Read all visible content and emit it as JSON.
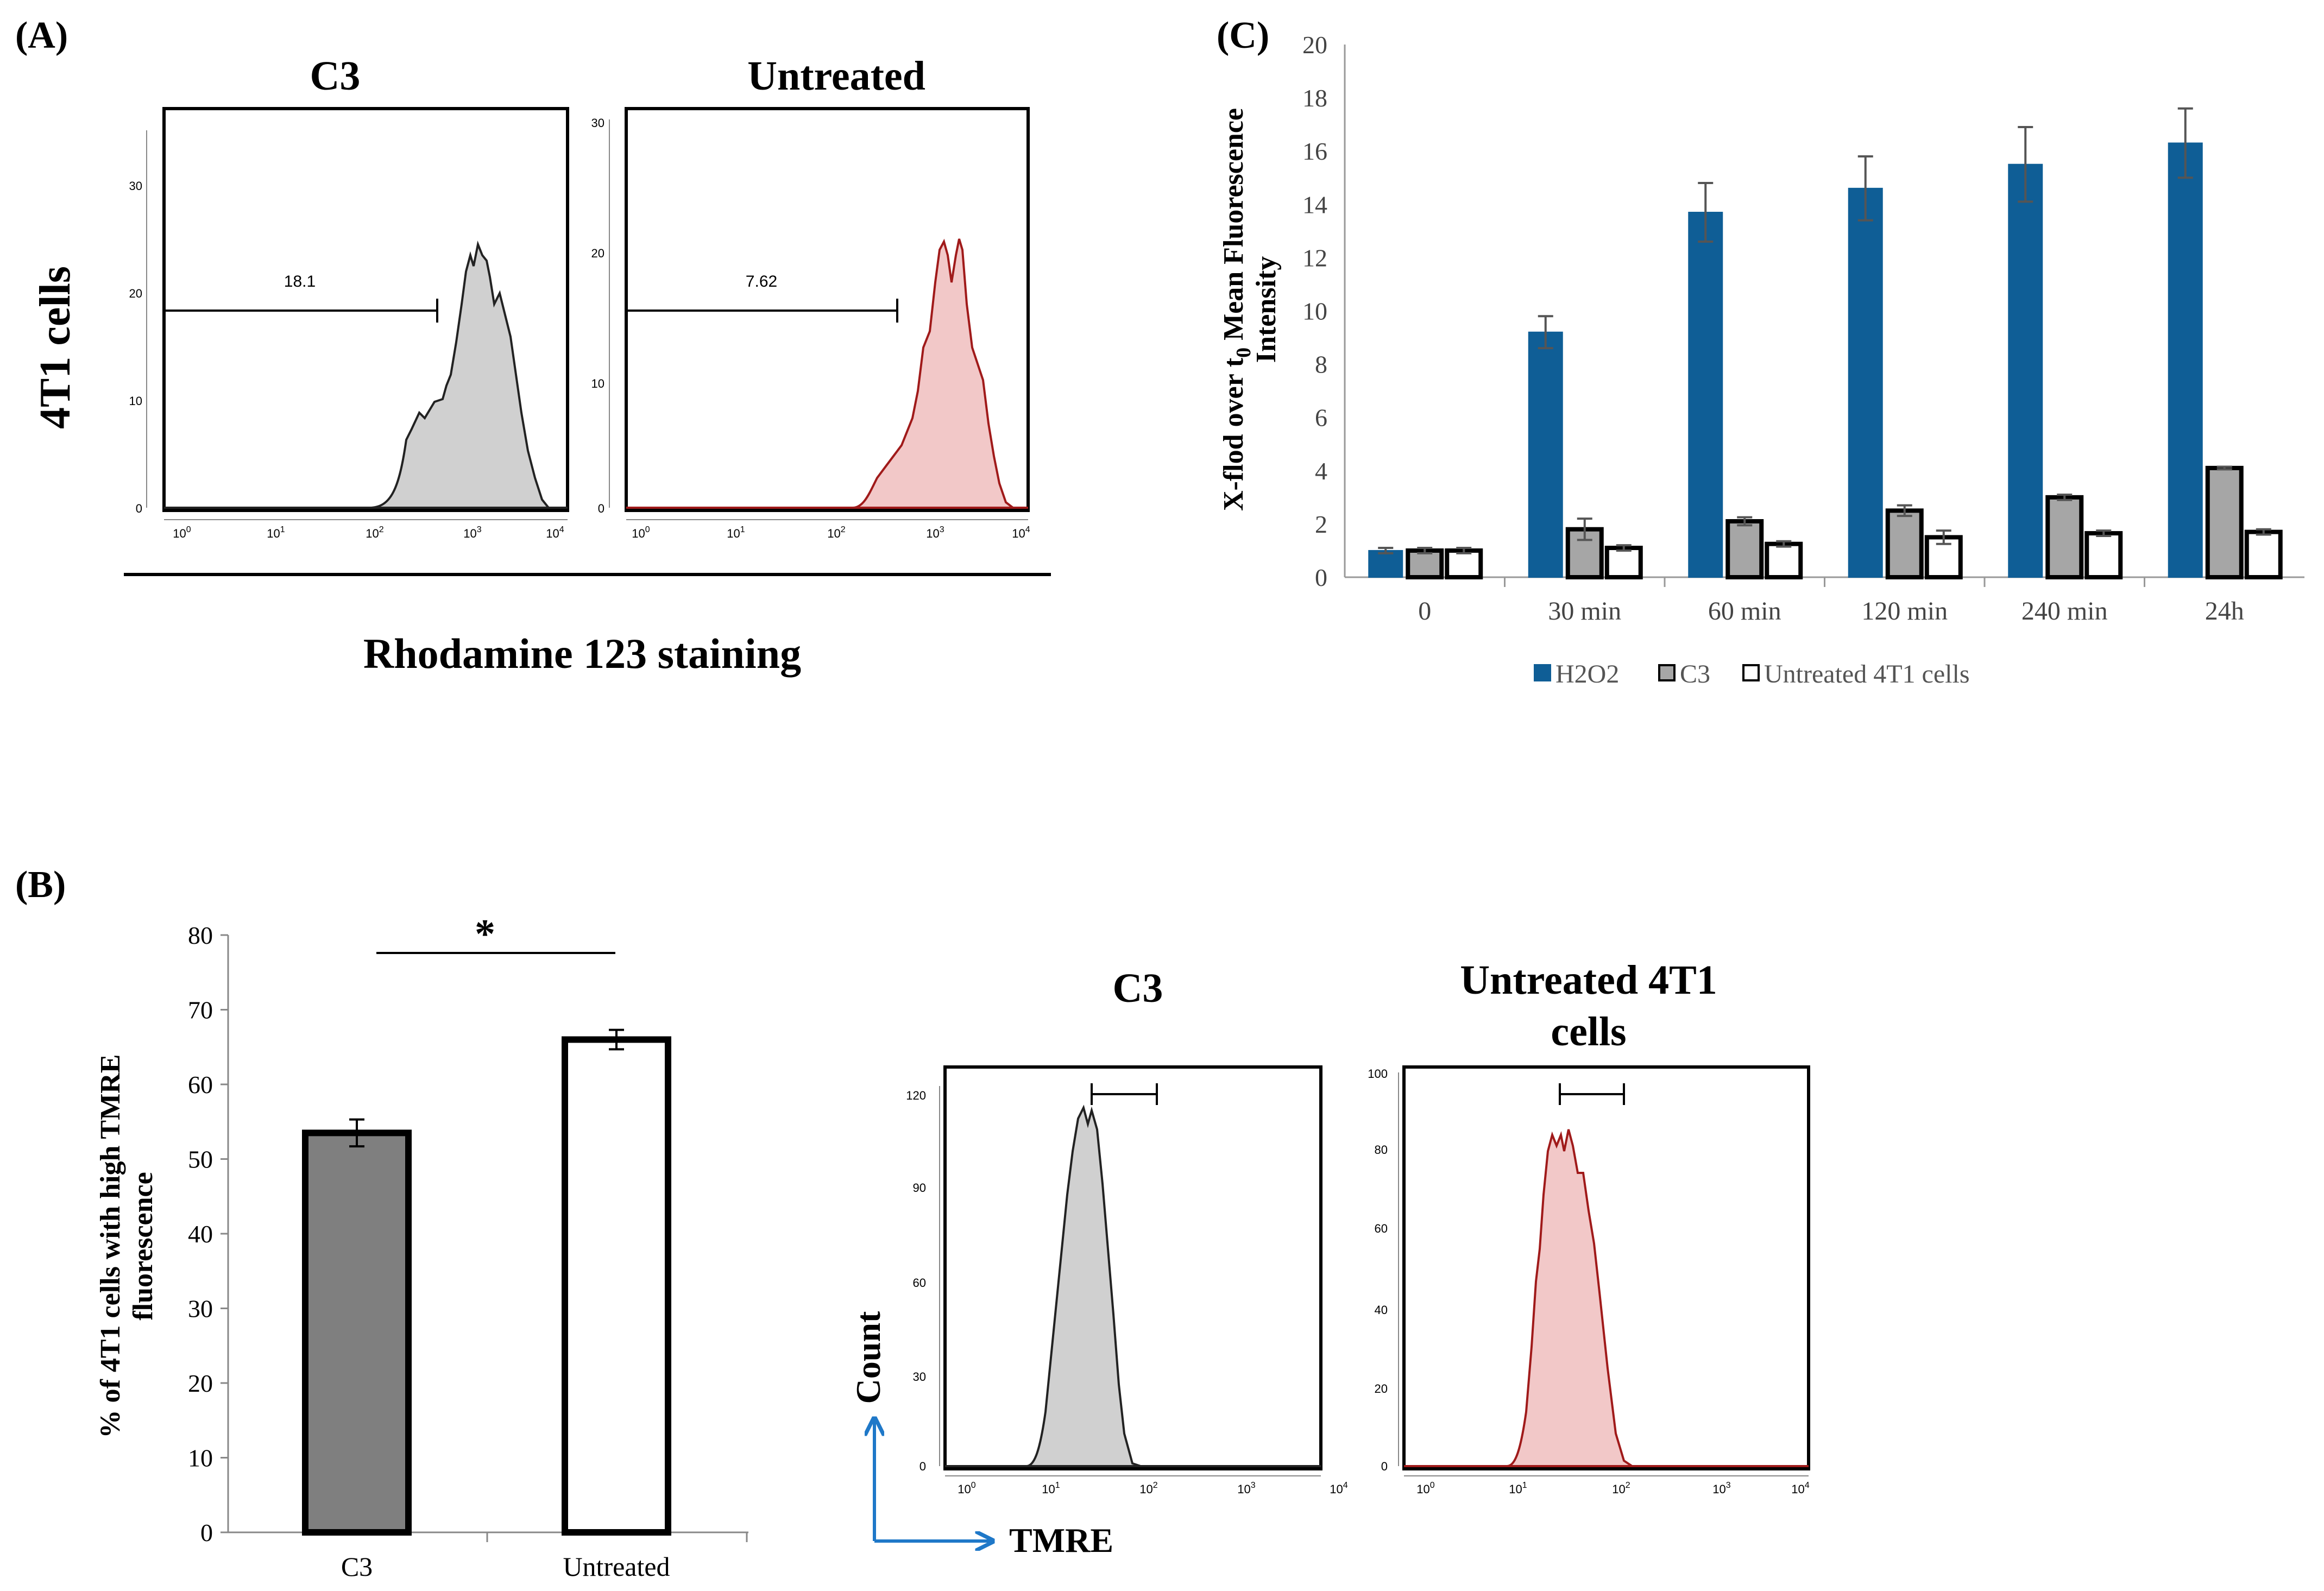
{
  "panels": {
    "a": {
      "letter": "(A)",
      "row_label": "4T1 cells",
      "x_caption": "Rhodamine 123 staining",
      "histograms": [
        {
          "title": "C3",
          "gate_value": "18.1",
          "y_ticks": [
            "0",
            "10",
            "20",
            "30"
          ],
          "x_ticks": [
            "10",
            "10",
            "10",
            "10",
            "10"
          ],
          "x_exponents": [
            "0",
            "1",
            "2",
            "3",
            "4"
          ],
          "color_fill": "#d0d0d0",
          "color_line": "#222222"
        },
        {
          "title": "Untreated",
          "gate_value": "7.62",
          "y_ticks": [
            "0",
            "10",
            "20",
            "30"
          ],
          "x_ticks": [
            "10",
            "10",
            "10",
            "10",
            "10"
          ],
          "x_exponents": [
            "0",
            "1",
            "2",
            "3",
            "4"
          ],
          "color_fill": "#f2c8c8",
          "color_line": "#a01a1a"
        }
      ]
    },
    "b": {
      "letter": "(B)",
      "significance": "*",
      "y_axis_label_line1": "% of 4T1 cells with high TMRE",
      "y_axis_label_line2": "fluorescence",
      "y_ticks": [
        "0",
        "10",
        "20",
        "30",
        "40",
        "50",
        "60",
        "70",
        "80"
      ],
      "histograms": [
        {
          "title_line1": "C3",
          "title_line2": "",
          "y_ticks": [
            "0",
            "30",
            "60",
            "90",
            "120"
          ],
          "x_ticks": [
            "10",
            "10",
            "10",
            "10",
            "10"
          ],
          "x_exponents": [
            "0",
            "1",
            "2",
            "3",
            "4"
          ],
          "color_fill": "#d0d0d0",
          "color_line": "#222222"
        },
        {
          "title_line1": "Untreated 4T1",
          "title_line2": "cells",
          "y_ticks": [
            "0",
            "20",
            "40",
            "60",
            "80",
            "100"
          ],
          "x_ticks": [
            "10",
            "10",
            "10",
            "10",
            "10"
          ],
          "x_exponents": [
            "0",
            "1",
            "2",
            "3",
            "4"
          ],
          "color_fill": "#f2c8c8",
          "color_line": "#a01a1a"
        }
      ],
      "axis_arrow_y_label": "Count",
      "axis_arrow_x_label": "TMRE",
      "arrow_color": "#1f78c8"
    },
    "c": {
      "letter": "(C)",
      "y_axis_label_line1_pre": "X-flod over t",
      "y_axis_label_sub": "0",
      "y_axis_label_line1_post": " Mean Fluorescence",
      "y_axis_label_line2": "Intensity",
      "y_ticks": [
        "0",
        "2",
        "4",
        "6",
        "8",
        "10",
        "12",
        "14",
        "16",
        "18",
        "20"
      ]
    }
  },
  "chart_data": [
    {
      "type": "bar",
      "panel": "B",
      "title": "",
      "xlabel": "",
      "ylabel": "% of 4T1 cells with high TMRE fluorescence",
      "categories": [
        "C3",
        "Untreated"
      ],
      "values": [
        53.5,
        66
      ],
      "errors": [
        1.8,
        1.3
      ],
      "colors": [
        "#7f7f7f",
        "#ffffff"
      ],
      "ylim": [
        0,
        80
      ],
      "significance_marker": "*"
    },
    {
      "type": "bar",
      "panel": "C",
      "title": "",
      "xlabel": "",
      "ylabel": "X-flod over t0 Mean Fluorescence Intensity",
      "categories": [
        "0",
        "30 min",
        "60 min",
        "120 min",
        "240 min",
        "24h"
      ],
      "ylim": [
        0,
        20
      ],
      "series": [
        {
          "name": "H2O2",
          "color": "#0f5e96",
          "values": [
            1.0,
            9.2,
            13.7,
            14.6,
            15.5,
            16.3
          ],
          "errors": [
            0.1,
            0.6,
            1.1,
            1.2,
            1.4,
            1.3
          ]
        },
        {
          "name": "C3",
          "color": "#a6a6a6",
          "values": [
            1.0,
            1.8,
            2.1,
            2.5,
            3.0,
            4.1
          ],
          "errors": [
            0.1,
            0.4,
            0.15,
            0.2,
            0.1,
            0.05
          ]
        },
        {
          "name": "Untreated 4T1 cells",
          "color": "#ffffff",
          "values": [
            1.0,
            1.1,
            1.25,
            1.5,
            1.65,
            1.7
          ],
          "errors": [
            0.1,
            0.1,
            0.1,
            0.25,
            0.1,
            0.1
          ]
        }
      ],
      "legend_position": "bottom"
    }
  ]
}
